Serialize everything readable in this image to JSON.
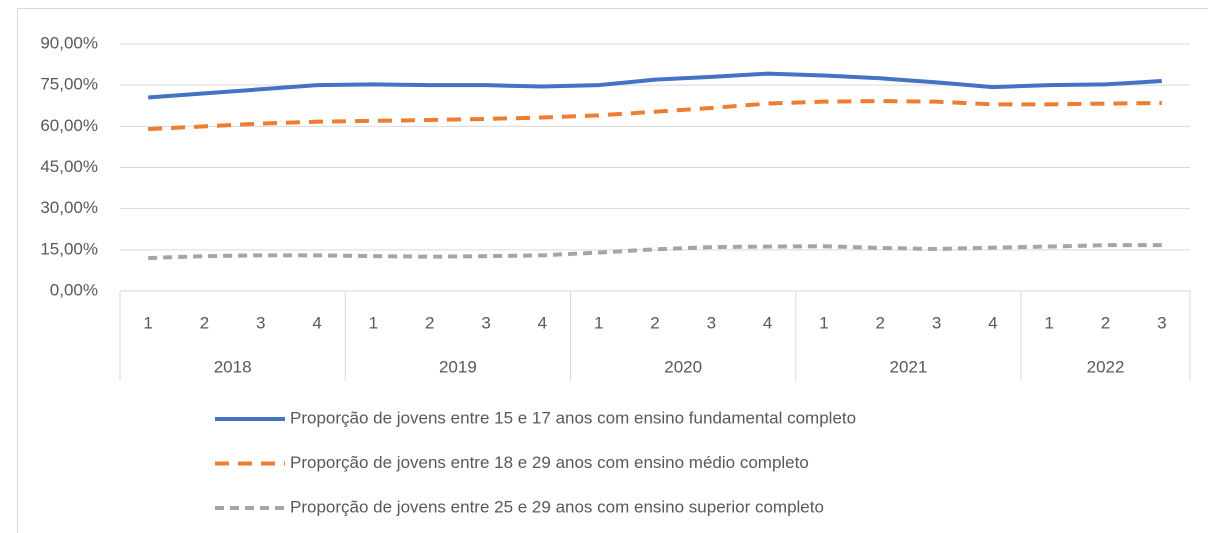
{
  "chart_data": {
    "type": "line",
    "groups": [
      {
        "label": "2018",
        "quarters": [
          "1",
          "2",
          "3",
          "4"
        ]
      },
      {
        "label": "2019",
        "quarters": [
          "1",
          "2",
          "3",
          "4"
        ]
      },
      {
        "label": "2020",
        "quarters": [
          "1",
          "2",
          "3",
          "4"
        ]
      },
      {
        "label": "2021",
        "quarters": [
          "1",
          "2",
          "3",
          "4"
        ]
      },
      {
        "label": "2022",
        "quarters": [
          "1",
          "2",
          "3"
        ]
      }
    ],
    "series": [
      {
        "name": "Proporção de jovens entre 15 e 17 anos com ensino fundamental completo",
        "color": "#4472c4",
        "line_style": "solid",
        "values": [
          70.5,
          72,
          73.5,
          75,
          75.3,
          75,
          75,
          74.5,
          75,
          77,
          78,
          79.2,
          78.5,
          77.5,
          76,
          74.3,
          75,
          75.3,
          76.5
        ]
      },
      {
        "name": "Proporção de jovens entre 18 e 29 anos com ensino médio completo",
        "color": "#ed7d31",
        "line_style": "dash",
        "values": [
          59,
          60,
          61,
          61.7,
          62,
          62.3,
          62.7,
          63.2,
          64,
          65.3,
          66.7,
          68.3,
          69,
          69.2,
          69,
          68,
          68,
          68.3,
          68.5
        ]
      },
      {
        "name": "Proporção de jovens entre 25 e 29 anos com ensino superior completo",
        "color": "#a5a5a5",
        "line_style": "short-dash",
        "values": [
          12,
          12.7,
          13,
          13,
          12.7,
          12.5,
          12.7,
          13,
          14,
          15.2,
          16,
          16.2,
          16.3,
          15.7,
          15.3,
          15.8,
          16.2,
          16.7,
          16.7
        ]
      }
    ],
    "ylim": [
      0,
      90
    ],
    "yticks": [
      {
        "value": 0,
        "label": "0,00%"
      },
      {
        "value": 15,
        "label": "15,00%"
      },
      {
        "value": 30,
        "label": "30,00%"
      },
      {
        "value": 45,
        "label": "45,00%"
      },
      {
        "value": 60,
        "label": "60,00%"
      },
      {
        "value": 75,
        "label": "75,00%"
      },
      {
        "value": 90,
        "label": "90,00%"
      }
    ],
    "grid": true,
    "legend": "bottom"
  }
}
